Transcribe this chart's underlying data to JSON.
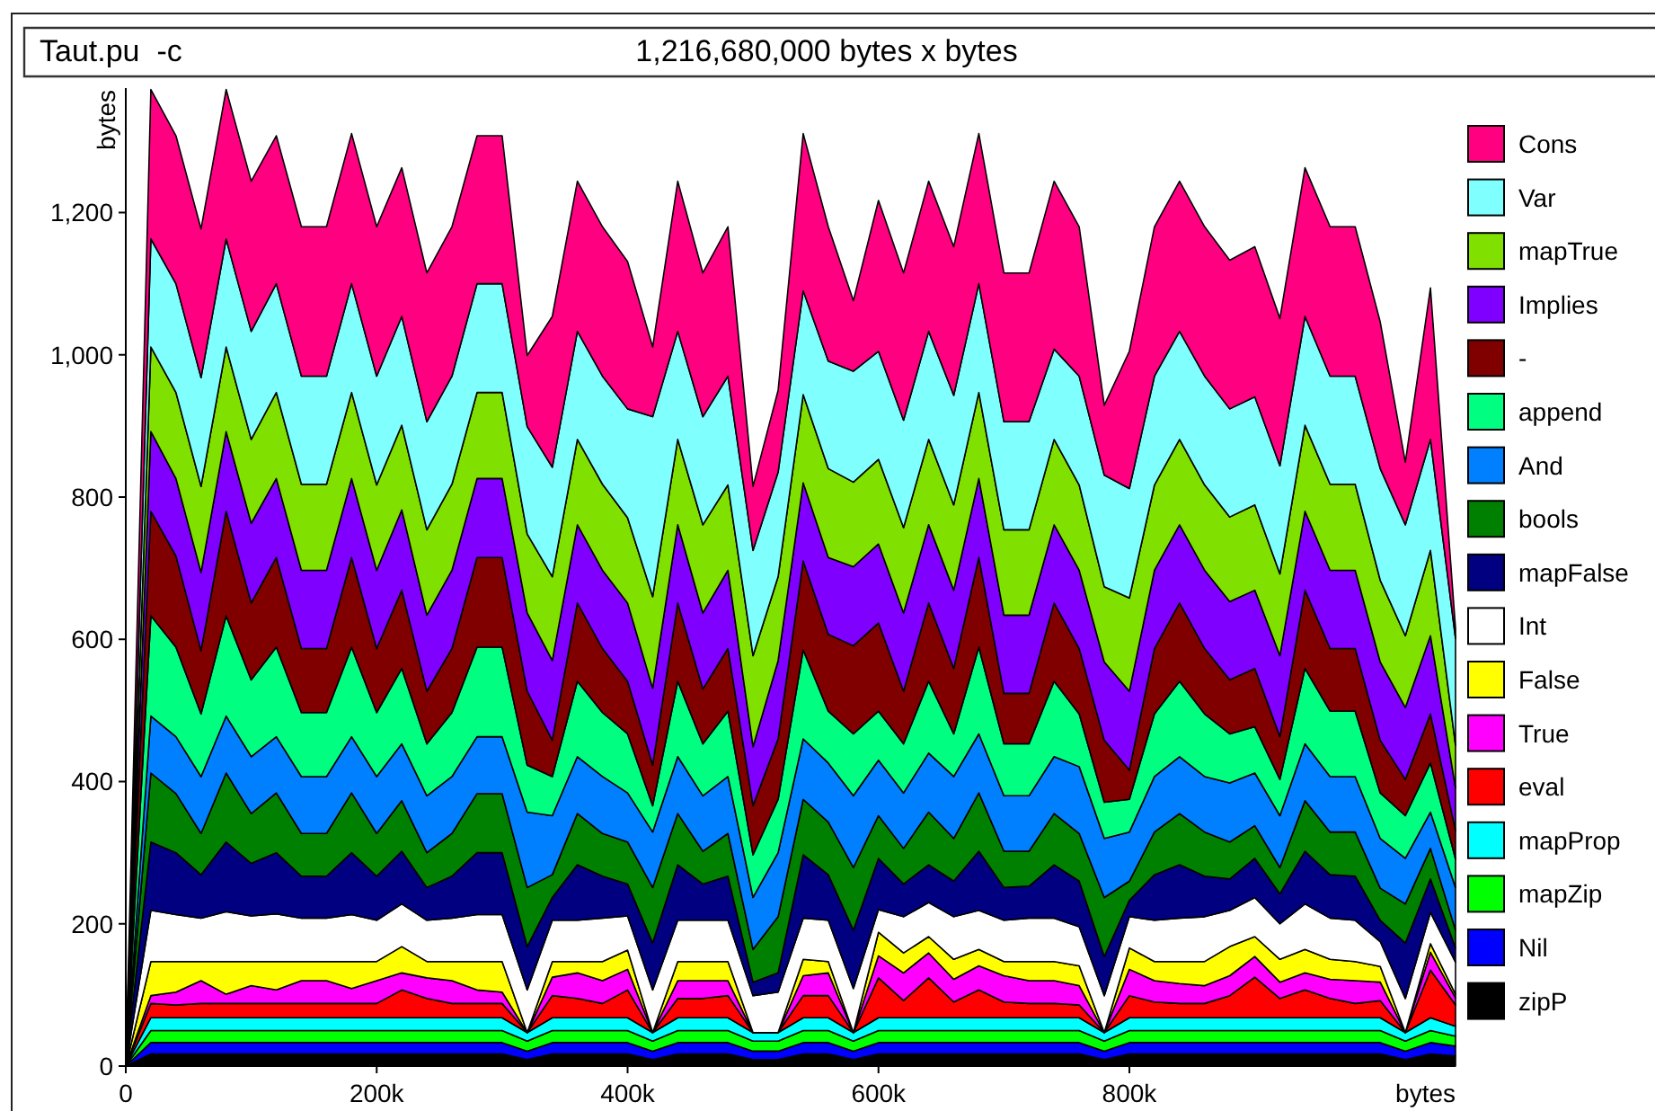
{
  "chart_data": {
    "type": "area",
    "title": "Taut.pu  -c",
    "subtitle": "1,216,680,000 bytes x bytes",
    "xlabel": "bytes",
    "ylabel": "bytes",
    "stacked": true,
    "legend": "right",
    "x": [
      0,
      20000,
      40000,
      60000,
      80000,
      100000,
      120000,
      140000,
      160000,
      180000,
      200000,
      220000,
      240000,
      260000,
      280000,
      300000,
      320000,
      340000,
      360000,
      380000,
      400000,
      420000,
      440000,
      460000,
      480000,
      500000,
      520000,
      540000,
      560000,
      580000,
      600000,
      620000,
      640000,
      660000,
      680000,
      700000,
      720000,
      740000,
      760000,
      780000,
      800000,
      820000,
      840000,
      860000,
      880000,
      900000,
      920000,
      940000,
      960000,
      980000,
      1000000,
      1020000,
      1040000,
      1060000
    ],
    "xlim": [
      0,
      1060000
    ],
    "xticks": [
      0,
      {
        "value": 200000,
        "label": "200k"
      },
      {
        "value": 400000,
        "label": "400k"
      },
      {
        "value": 600000,
        "label": "600k"
      },
      {
        "value": 800000,
        "label": "800k"
      }
    ],
    "ylim": [
      0,
      1375
    ],
    "yticks": [
      0,
      200,
      400,
      600,
      800,
      {
        "value": 1000,
        "label": "1,000"
      },
      {
        "value": 1200,
        "label": "1,200"
      }
    ],
    "series": [
      {
        "name": "zipP",
        "color": "#000000",
        "values": [
          0,
          17,
          17,
          17,
          17,
          17,
          17,
          17,
          17,
          17,
          17,
          17,
          17,
          17,
          17,
          17,
          9,
          17,
          17,
          17,
          17,
          9,
          17,
          17,
          17,
          9,
          9,
          17,
          17,
          9,
          17,
          17,
          17,
          17,
          17,
          17,
          17,
          17,
          17,
          9,
          17,
          17,
          17,
          17,
          17,
          17,
          17,
          17,
          17,
          17,
          17,
          9,
          17,
          14
        ]
      },
      {
        "name": "Nil",
        "color": "#0000ff",
        "values": [
          0,
          16,
          16,
          16,
          16,
          16,
          16,
          16,
          16,
          16,
          16,
          16,
          16,
          16,
          16,
          16,
          12,
          16,
          16,
          16,
          16,
          12,
          16,
          16,
          16,
          12,
          12,
          16,
          16,
          12,
          16,
          16,
          16,
          16,
          16,
          16,
          16,
          16,
          16,
          12,
          16,
          16,
          16,
          16,
          16,
          16,
          16,
          16,
          16,
          16,
          16,
          12,
          16,
          14
        ]
      },
      {
        "name": "mapZip",
        "color": "#00ff00",
        "values": [
          0,
          17,
          17,
          17,
          17,
          17,
          17,
          17,
          17,
          17,
          17,
          17,
          17,
          17,
          17,
          17,
          14,
          17,
          17,
          17,
          17,
          14,
          17,
          17,
          17,
          14,
          14,
          17,
          17,
          14,
          17,
          17,
          17,
          17,
          17,
          17,
          17,
          17,
          17,
          14,
          17,
          17,
          17,
          17,
          17,
          17,
          17,
          17,
          17,
          17,
          17,
          14,
          17,
          14
        ]
      },
      {
        "name": "mapProp",
        "color": "#00ffff",
        "values": [
          0,
          18,
          18,
          18,
          18,
          18,
          18,
          18,
          18,
          18,
          18,
          18,
          18,
          18,
          18,
          18,
          12,
          18,
          18,
          18,
          18,
          12,
          18,
          18,
          18,
          12,
          12,
          18,
          18,
          12,
          18,
          18,
          18,
          18,
          18,
          18,
          18,
          18,
          18,
          12,
          18,
          18,
          18,
          18,
          18,
          18,
          18,
          18,
          18,
          18,
          18,
          12,
          18,
          14
        ]
      },
      {
        "name": "eval",
        "color": "#ff0000",
        "values": [
          0,
          20,
          18,
          20,
          20,
          20,
          20,
          20,
          20,
          20,
          20,
          39,
          27,
          20,
          20,
          20,
          0,
          31,
          27,
          20,
          39,
          0,
          27,
          27,
          31,
          0,
          0,
          31,
          31,
          0,
          56,
          24,
          56,
          22,
          39,
          22,
          20,
          20,
          18,
          0,
          31,
          22,
          20,
          20,
          31,
          57,
          27,
          39,
          27,
          20,
          24,
          0,
          67,
          30
        ]
      },
      {
        "name": "True",
        "color": "#ff00ff",
        "values": [
          0,
          11,
          18,
          32,
          13,
          25,
          19,
          32,
          32,
          21,
          32,
          24,
          29,
          32,
          19,
          16,
          0,
          26,
          36,
          32,
          29,
          0,
          25,
          25,
          21,
          0,
          0,
          28,
          32,
          0,
          31,
          39,
          35,
          32,
          34,
          37,
          32,
          32,
          27,
          0,
          37,
          30,
          28,
          25,
          28,
          29,
          23,
          24,
          27,
          32,
          26,
          0,
          25,
          10
        ]
      },
      {
        "name": "False",
        "color": "#ffff00",
        "values": [
          0,
          48,
          43,
          27,
          46,
          34,
          40,
          27,
          27,
          38,
          27,
          37,
          23,
          27,
          40,
          43,
          0,
          22,
          16,
          27,
          27,
          0,
          27,
          27,
          27,
          0,
          0,
          23,
          16,
          0,
          33,
          28,
          23,
          28,
          23,
          20,
          27,
          27,
          28,
          0,
          30,
          27,
          31,
          34,
          41,
          28,
          32,
          33,
          28,
          27,
          22,
          0,
          12,
          5
        ]
      },
      {
        "name": "Int",
        "color": "#ffffff",
        "values": [
          0,
          72,
          66,
          61,
          70,
          64,
          67,
          61,
          61,
          66,
          58,
          60,
          58,
          61,
          66,
          66,
          60,
          58,
          58,
          61,
          48,
          60,
          58,
          58,
          58,
          52,
          57,
          58,
          58,
          62,
          32,
          51,
          48,
          60,
          55,
          58,
          61,
          61,
          55,
          52,
          44,
          58,
          61,
          63,
          51,
          55,
          50,
          64,
          58,
          58,
          35,
          48,
          44,
          45
        ]
      },
      {
        "name": "mapFalse",
        "color": "#000080",
        "values": [
          0,
          96,
          87,
          61,
          98,
          74,
          86,
          59,
          59,
          87,
          62,
          74,
          46,
          59,
          87,
          87,
          61,
          32,
          78,
          59,
          45,
          66,
          78,
          51,
          62,
          19,
          27,
          89,
          64,
          82,
          72,
          46,
          53,
          50,
          83,
          46,
          45,
          75,
          64,
          55,
          23,
          64,
          75,
          57,
          44,
          55,
          42,
          74,
          61,
          62,
          30,
          78,
          47,
          20
        ]
      },
      {
        "name": "bools",
        "color": "#008000",
        "values": [
          0,
          97,
          83,
          58,
          97,
          70,
          84,
          60,
          60,
          84,
          60,
          71,
          49,
          60,
          83,
          83,
          83,
          32,
          72,
          60,
          59,
          78,
          72,
          46,
          60,
          46,
          79,
          78,
          74,
          88,
          60,
          50,
          74,
          60,
          82,
          51,
          49,
          72,
          67,
          83,
          27,
          60,
          72,
          62,
          52,
          46,
          37,
          71,
          60,
          62,
          45,
          55,
          43,
          25
        ]
      },
      {
        "name": "And",
        "color": "#0080ff",
        "values": [
          0,
          80,
          80,
          80,
          80,
          80,
          79,
          80,
          80,
          79,
          80,
          80,
          80,
          80,
          80,
          80,
          106,
          83,
          80,
          80,
          69,
          78,
          80,
          78,
          80,
          73,
          90,
          85,
          83,
          101,
          78,
          78,
          83,
          87,
          83,
          78,
          78,
          80,
          94,
          83,
          69,
          78,
          80,
          78,
          83,
          74,
          73,
          80,
          78,
          78,
          70,
          64,
          51,
          60
        ]
      },
      {
        "name": "append",
        "color": "#00ff80",
        "values": [
          0,
          141,
          126,
          88,
          141,
          108,
          126,
          90,
          90,
          126,
          90,
          106,
          73,
          90,
          126,
          126,
          66,
          55,
          106,
          90,
          83,
          37,
          106,
          73,
          92,
          60,
          75,
          125,
          73,
          87,
          69,
          69,
          101,
          60,
          122,
          73,
          73,
          106,
          74,
          51,
          46,
          88,
          106,
          88,
          69,
          65,
          51,
          106,
          92,
          92,
          64,
          60,
          69,
          40
        ]
      },
      {
        "name": "-",
        "color": "#800000",
        "values": [
          0,
          147,
          128,
          89,
          147,
          108,
          126,
          90,
          90,
          126,
          90,
          110,
          74,
          90,
          126,
          126,
          104,
          51,
          110,
          90,
          74,
          57,
          110,
          77,
          88,
          69,
          85,
          125,
          108,
          124,
          124,
          74,
          110,
          92,
          126,
          71,
          71,
          110,
          92,
          87,
          41,
          92,
          110,
          92,
          76,
          82,
          60,
          110,
          88,
          88,
          74,
          51,
          69,
          40
        ]
      },
      {
        "name": "Implies",
        "color": "#8000ff",
        "values": [
          0,
          112,
          109,
          110,
          112,
          112,
          111,
          110,
          110,
          111,
          110,
          113,
          107,
          110,
          111,
          111,
          110,
          112,
          110,
          110,
          110,
          108,
          110,
          107,
          110,
          83,
          110,
          110,
          108,
          111,
          111,
          110,
          110,
          110,
          111,
          110,
          110,
          110,
          110,
          110,
          111,
          110,
          110,
          110,
          110,
          110,
          114,
          111,
          110,
          110,
          110,
          101,
          110,
          60
        ]
      },
      {
        "name": "mapTrue",
        "color": "#80e000",
        "values": [
          0,
          119,
          121,
          121,
          119,
          118,
          121,
          121,
          121,
          121,
          120,
          119,
          120,
          121,
          121,
          121,
          111,
          118,
          120,
          121,
          120,
          129,
          120,
          124,
          120,
          128,
          118,
          124,
          125,
          119,
          119,
          120,
          120,
          120,
          121,
          120,
          120,
          120,
          120,
          106,
          131,
          120,
          120,
          120,
          119,
          120,
          115,
          121,
          121,
          121,
          115,
          101,
          120,
          60
        ]
      },
      {
        "name": "Var",
        "color": "#80ffff",
        "values": [
          0,
          152,
          153,
          153,
          152,
          152,
          153,
          152,
          152,
          153,
          153,
          153,
          152,
          152,
          153,
          153,
          151,
          154,
          152,
          152,
          153,
          253,
          152,
          152,
          153,
          148,
          147,
          146,
          151,
          156,
          152,
          151,
          152,
          154,
          153,
          152,
          152,
          127,
          153,
          157,
          154,
          153,
          152,
          153,
          152,
          152,
          152,
          153,
          152,
          152,
          157,
          156,
          156,
          150
        ]
      },
      {
        "name": "Cons",
        "color": "#ff0080",
        "values": [
          0,
          210,
          208,
          209,
          210,
          211,
          208,
          210,
          210,
          211,
          210,
          209,
          209,
          210,
          208,
          208,
          100,
          212,
          211,
          210,
          207,
          98,
          211,
          202,
          210,
          90,
          115,
          221,
          189,
          99,
          212,
          207,
          211,
          209,
          211,
          209,
          209,
          236,
          210,
          98,
          193,
          210,
          211,
          210,
          209,
          211,
          207,
          209,
          210,
          210,
          206,
          88,
          213,
          14
        ]
      }
    ]
  }
}
